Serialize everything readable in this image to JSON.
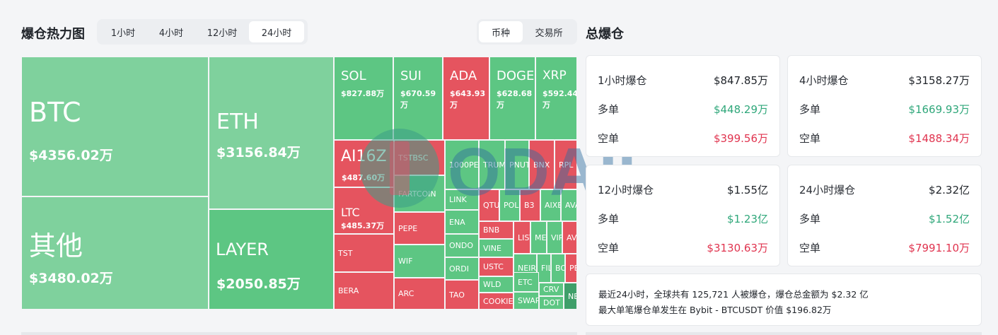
{
  "header": {
    "title": "爆仓热力图",
    "time_tabs": [
      {
        "label": "1小时",
        "active": false
      },
      {
        "label": "4小时",
        "active": false
      },
      {
        "label": "12小时",
        "active": false
      },
      {
        "label": "24小时",
        "active": true
      }
    ],
    "group_tabs": [
      {
        "label": "币种",
        "active": true
      },
      {
        "label": "交易所",
        "active": false
      }
    ]
  },
  "summary": {
    "title": "总爆仓",
    "cards": [
      {
        "title": "1小时爆仓",
        "total": "$847.85万",
        "long_label": "多单",
        "long": "$448.29万",
        "short_label": "空单",
        "short": "$399.56万"
      },
      {
        "title": "4小时爆仓",
        "total": "$3158.27万",
        "long_label": "多单",
        "long": "$1669.93万",
        "short_label": "空单",
        "short": "$1488.34万"
      },
      {
        "title": "12小时爆仓",
        "total": "$1.55亿",
        "long_label": "多单",
        "long": "$1.23亿",
        "short_label": "空单",
        "short": "$3130.63万"
      },
      {
        "title": "24小时爆仓",
        "total": "$2.32亿",
        "long_label": "多单",
        "long": "$1.52亿",
        "short_label": "空单",
        "short": "$7991.10万"
      }
    ],
    "note_line1": "最近24小时，全球共有 125,721 人被爆仓，爆仓总金额为 $2.32 亿",
    "note_line2": "最大单笔爆仓单发生在 Bybit - BTCUSDT 价值 $196.82万"
  },
  "watermark": "ODAILY",
  "colors": {
    "light_green": "#7fd19d",
    "green": "#5dc683",
    "red": "#e5545f",
    "dark_green": "#3f9f6a"
  },
  "treemap": [
    {
      "sym": "BTC",
      "val": "$4356.02万",
      "color": "light_green"
    },
    {
      "sym": "其他",
      "val": "$3480.02万",
      "color": "light_green"
    },
    {
      "sym": "ETH",
      "val": "$3156.84万",
      "color": "light_green"
    },
    {
      "sym": "LAYER",
      "val": "$2050.85万",
      "color": "green"
    },
    {
      "sym": "SOL",
      "val": "$827.88万",
      "color": "green"
    },
    {
      "sym": "SUI",
      "val": "$670.59万",
      "color": "green"
    },
    {
      "sym": "ADA",
      "val": "$643.93万",
      "color": "red"
    },
    {
      "sym": "DOGE",
      "val": "$628.68万",
      "color": "green"
    },
    {
      "sym": "XRP",
      "val": "$592.44万",
      "color": "green"
    },
    {
      "sym": "AI16Z",
      "val": "$487.60万",
      "color": "red"
    },
    {
      "sym": "LTC",
      "val": "$485.37万",
      "color": "red"
    },
    {
      "sym": "TST",
      "val": "",
      "color": "red"
    },
    {
      "sym": "BERA",
      "val": "",
      "color": "red"
    },
    {
      "sym": "TSTBSC",
      "val": "",
      "color": "red"
    },
    {
      "sym": "FARTCOIN",
      "val": "",
      "color": "green"
    },
    {
      "sym": "PEPE",
      "val": "",
      "color": "red"
    },
    {
      "sym": "WIF",
      "val": "",
      "color": "green"
    },
    {
      "sym": "ARC",
      "val": "",
      "color": "red"
    },
    {
      "sym": "1000PEPE",
      "val": "",
      "color": "green"
    },
    {
      "sym": "TRUMP",
      "val": "",
      "color": "green"
    },
    {
      "sym": "PNUT",
      "val": "",
      "color": "green"
    },
    {
      "sym": "BNX",
      "val": "",
      "color": "red"
    },
    {
      "sym": "RPL",
      "val": "",
      "color": "red"
    },
    {
      "sym": "LINK",
      "val": "",
      "color": "green"
    },
    {
      "sym": "ENA",
      "val": "",
      "color": "green"
    },
    {
      "sym": "ONDO",
      "val": "",
      "color": "green"
    },
    {
      "sym": "ORDI",
      "val": "",
      "color": "green"
    },
    {
      "sym": "TAO",
      "val": "",
      "color": "red"
    },
    {
      "sym": "QTUM",
      "val": "",
      "color": "red"
    },
    {
      "sym": "POL",
      "val": "",
      "color": "green"
    },
    {
      "sym": "B3",
      "val": "",
      "color": "red"
    },
    {
      "sym": "AIXBT",
      "val": "",
      "color": "green"
    },
    {
      "sym": "AVAX",
      "val": "",
      "color": "green"
    },
    {
      "sym": "BNB",
      "val": "",
      "color": "red"
    },
    {
      "sym": "VINE",
      "val": "",
      "color": "green"
    },
    {
      "sym": "USTC",
      "val": "",
      "color": "red"
    },
    {
      "sym": "WLD",
      "val": "",
      "color": "green"
    },
    {
      "sym": "COOKIE",
      "val": "",
      "color": "red"
    },
    {
      "sym": "LISTA",
      "val": "",
      "color": "red"
    },
    {
      "sym": "MEME",
      "val": "",
      "color": "green"
    },
    {
      "sym": "VIRTUAL",
      "val": "",
      "color": "green"
    },
    {
      "sym": "AVAAI",
      "val": "",
      "color": "red"
    },
    {
      "sym": "NEIRO",
      "val": "",
      "color": "green"
    },
    {
      "sym": "FIL",
      "val": "",
      "color": "green"
    },
    {
      "sym": "BOME",
      "val": "",
      "color": "green"
    },
    {
      "sym": "PEOPLE",
      "val": "",
      "color": "red"
    },
    {
      "sym": "ETC",
      "val": "",
      "color": "green"
    },
    {
      "sym": "CRV",
      "val": "",
      "color": "green"
    },
    {
      "sym": "SWARMS",
      "val": "",
      "color": "green"
    },
    {
      "sym": "DOT",
      "val": "",
      "color": "green"
    },
    {
      "sym": "NEAR",
      "val": "",
      "color": "dark_green"
    }
  ]
}
